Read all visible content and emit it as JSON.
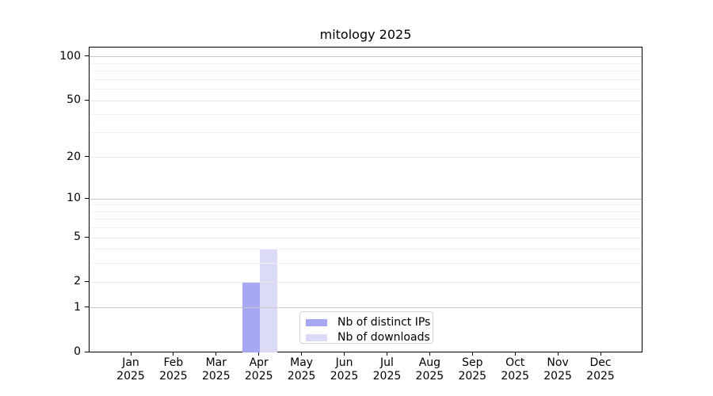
{
  "chart_data": {
    "type": "bar",
    "title": "mitology 2025",
    "categories": [
      "Jan",
      "Feb",
      "Mar",
      "Apr",
      "May",
      "Jun",
      "Jul",
      "Aug",
      "Sep",
      "Oct",
      "Nov",
      "Dec"
    ],
    "category_year": "2025",
    "series": [
      {
        "name": "Nb of distinct IPs",
        "color": "#a7a7f4",
        "values": [
          null,
          null,
          null,
          2,
          null,
          null,
          null,
          null,
          null,
          null,
          null,
          null
        ]
      },
      {
        "name": "Nb of downloads",
        "color": "#dbdbf8",
        "values": [
          null,
          null,
          null,
          4,
          null,
          null,
          null,
          null,
          null,
          null,
          null,
          null
        ]
      }
    ],
    "xlabel": "",
    "ylabel": "",
    "y_scale": "log1p",
    "y_ticks_labeled": [
      0,
      1,
      2,
      5,
      10,
      20,
      50,
      100
    ],
    "y_ticks_minor": [
      3,
      4,
      6,
      7,
      8,
      9,
      30,
      40,
      60,
      70,
      80,
      90
    ],
    "ylim": [
      0,
      116
    ],
    "grid": "horizontal, minor and major",
    "legend_position": "lower center"
  },
  "colors": {
    "bar_distinct_ips": "#a7a7f4",
    "bar_downloads": "#dbdbf8",
    "grid_decade": "#c9c9c9",
    "grid_labeled": "#e7e7e7",
    "grid_minor": "#f1f1f1",
    "spine": "#000000",
    "text": "#000000",
    "legend_border": "#d2d2d2",
    "background": "#ffffff"
  }
}
